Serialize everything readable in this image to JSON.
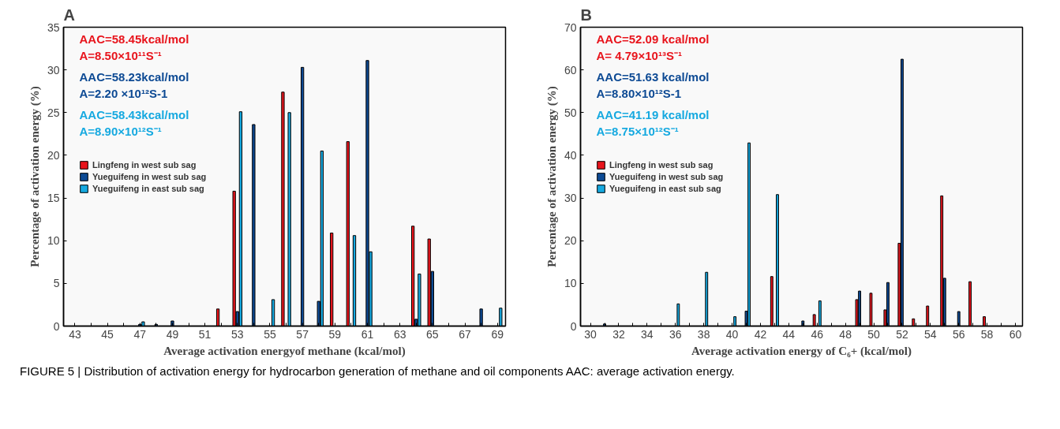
{
  "chart_data": [
    {
      "type": "bar",
      "title": "A",
      "xlabel": "Average activation energyof methane (kcal/mol)",
      "ylabel": "Percentage of activation energy (%)",
      "xlim": [
        42.3,
        69.5
      ],
      "ylim": [
        0,
        35
      ],
      "xticks": [
        43,
        {
          "value": 44,
          "label": null
        },
        45,
        {
          "value": 46,
          "label": null
        },
        47,
        {
          "value": 48,
          "label": null
        },
        49,
        {
          "value": 50,
          "label": null
        },
        51,
        {
          "value": 52,
          "label": null
        },
        53,
        {
          "value": 54,
          "label": null
        },
        55,
        {
          "value": 56,
          "label": null
        },
        57,
        {
          "value": 58,
          "label": null
        },
        59,
        {
          "value": 60,
          "label": null
        },
        61,
        {
          "value": 62,
          "label": null
        },
        63,
        {
          "value": 64,
          "label": null
        },
        65,
        {
          "value": 66,
          "label": null
        },
        67,
        {
          "value": 68,
          "label": null
        },
        69
      ],
      "yticks": [
        0,
        5,
        10,
        15,
        20,
        25,
        30,
        35
      ],
      "grid": false,
      "legend": "left",
      "series": [
        {
          "name": "Lingfeng in west sub sag",
          "color": "#e8141c",
          "x": [
            52,
            53,
            56,
            59,
            60,
            64,
            65
          ],
          "values": [
            2.0,
            15.8,
            27.4,
            10.9,
            21.6,
            11.7,
            10.2
          ]
        },
        {
          "name": "Yueguifeng in west sub sag",
          "color": "#0d4a94",
          "x": [
            47,
            48,
            49,
            53,
            54,
            57,
            58,
            61,
            64,
            65,
            68
          ],
          "values": [
            0.2,
            0.2,
            0.6,
            1.7,
            23.6,
            30.3,
            2.9,
            31.1,
            0.8,
            6.4,
            2.0
          ]
        },
        {
          "name": "Yueguifeng in east sub sag",
          "color": "#16a9e0",
          "x": [
            47,
            53,
            55,
            56,
            58,
            60,
            61,
            64,
            69
          ],
          "values": [
            0.5,
            25.1,
            3.1,
            25.0,
            20.5,
            10.6,
            8.7,
            6.1,
            2.1
          ]
        }
      ],
      "annotations": [
        "AAC=58.45kcal/mol",
        "A=8.50×10¹¹S⁻¹",
        "AAC=58.23kcal/mol",
        "A=2.20 ×10¹²S-1",
        "AAC=58.43kcal/mol",
        "A=8.90×10¹²S⁻¹"
      ]
    },
    {
      "type": "bar",
      "title": "B",
      "xlabel": "Average activation energy of C₆+ (kcal/mol)",
      "ylabel": "Percentage of activation energy (%)",
      "xlim": [
        29.3,
        60.5
      ],
      "ylim": [
        0,
        70
      ],
      "xticks": [
        30,
        {
          "value": 31,
          "label": null
        },
        32,
        {
          "value": 33,
          "label": null
        },
        34,
        {
          "value": 35,
          "label": null
        },
        36,
        {
          "value": 37,
          "label": null
        },
        38,
        {
          "value": 39,
          "label": null
        },
        40,
        {
          "value": 41,
          "label": null
        },
        42,
        {
          "value": 43,
          "label": null
        },
        44,
        {
          "value": 45,
          "label": null
        },
        46,
        {
          "value": 47,
          "label": null
        },
        48,
        {
          "value": 49,
          "label": null
        },
        50,
        {
          "value": 51,
          "label": null
        },
        52,
        {
          "value": 53,
          "label": null
        },
        54,
        {
          "value": 55,
          "label": null
        },
        56,
        {
          "value": 57,
          "label": null
        },
        58,
        {
          "value": 59,
          "label": null
        },
        60
      ],
      "yticks": [
        0,
        10,
        20,
        30,
        40,
        50,
        60,
        70
      ],
      "grid": false,
      "legend": "left",
      "series": [
        {
          "name": "Lingfeng in west sub sag",
          "color": "#e8141c",
          "x": [
            43,
            46,
            49,
            50,
            51,
            52,
            53,
            54,
            55,
            57,
            58
          ],
          "values": [
            11.6,
            2.7,
            6.2,
            7.7,
            3.8,
            19.4,
            1.7,
            4.7,
            30.5,
            10.4,
            2.2
          ]
        },
        {
          "name": "Yueguifeng in west sub sag",
          "color": "#0d4a94",
          "x": [
            31,
            41,
            45,
            49,
            51,
            52,
            55,
            56
          ],
          "values": [
            0.5,
            3.5,
            1.2,
            8.2,
            10.2,
            62.5,
            11.2,
            3.4
          ]
        },
        {
          "name": "Yueguifeng in east sub sag",
          "color": "#16a9e0",
          "x": [
            36,
            38,
            40,
            41,
            43,
            46
          ],
          "values": [
            5.2,
            12.6,
            2.2,
            42.9,
            30.8,
            5.9
          ]
        }
      ],
      "annotations": [
        "AAC=52.09 kcal/mol",
        "A= 4.79×10¹³S⁻¹",
        "AAC=51.63 kcal/mol",
        "A=8.80×10¹²S-1",
        "AAC=41.19 kcal/mol",
        "A=8.75×10¹²S⁻¹"
      ]
    },
    {
      "type": "other",
      "annotations": [
        "FIGURE 5 | Distribution of activation energy for hydrocarbon generation of methane and oil components AAC: average activation energy."
      ]
    }
  ]
}
